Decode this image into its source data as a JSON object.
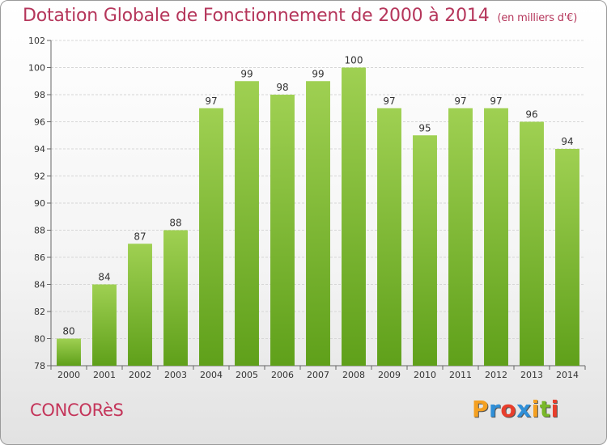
{
  "title": "Dotation Globale de Fonctionnement de 2000 à 2014",
  "unit": "(en milliers d'€)",
  "commune": "CONCORèS",
  "logo": {
    "letters": [
      "P",
      "r",
      "o",
      "x",
      "i",
      "t",
      "i"
    ],
    "colors": [
      "#f4a021",
      "#2f8fd8",
      "#e83e2c",
      "#2f8fd8",
      "#f4a021",
      "#79b829",
      "#e83e2c"
    ]
  },
  "colors": {
    "bar_top": "#9fd052",
    "bar_bottom": "#5fa01a",
    "title": "#b5365b"
  },
  "chart_data": {
    "type": "bar",
    "categories": [
      "2000",
      "2001",
      "2002",
      "2003",
      "2004",
      "2005",
      "2006",
      "2007",
      "2008",
      "2009",
      "2010",
      "2011",
      "2012",
      "2013",
      "2014"
    ],
    "values": [
      80,
      84,
      87,
      88,
      97,
      99,
      98,
      99,
      100,
      97,
      95,
      97,
      97,
      96,
      94
    ],
    "title": "Dotation Globale de Fonctionnement de 2000 à 2014",
    "xlabel": "",
    "ylabel": "",
    "ylim": [
      78,
      102
    ],
    "yticks": [
      78,
      80,
      82,
      84,
      86,
      88,
      90,
      92,
      94,
      96,
      98,
      100,
      102
    ],
    "grid": true
  }
}
